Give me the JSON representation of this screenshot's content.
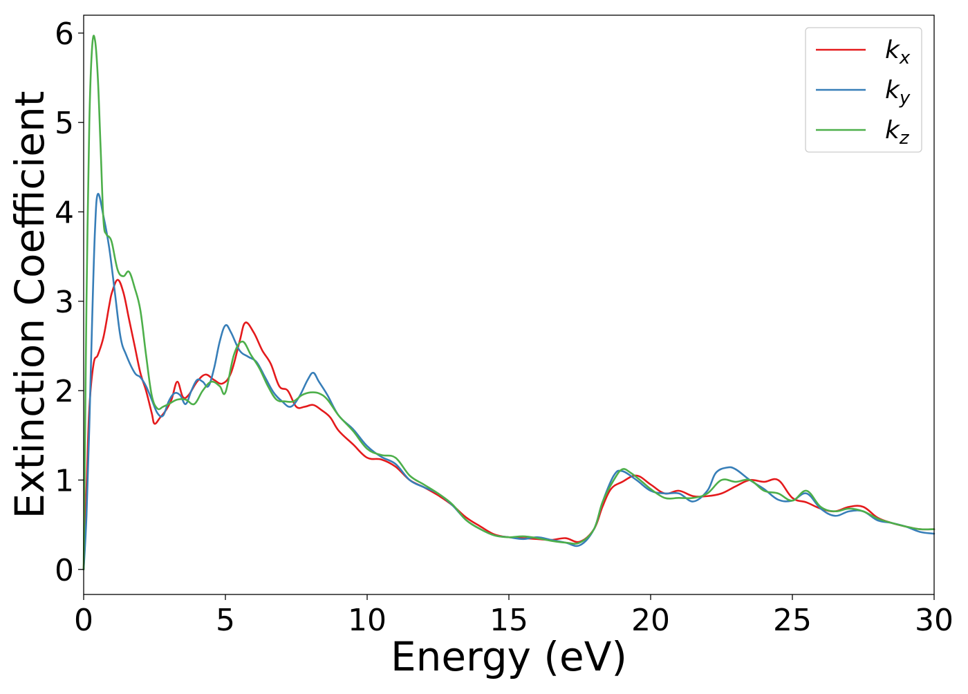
{
  "chart_data": {
    "type": "line",
    "title": "",
    "xlabel": "Energy (eV)",
    "ylabel": "Extinction Coefficient",
    "xlim": [
      0,
      30
    ],
    "ylim": [
      -0.28,
      6.2
    ],
    "xticks": [
      0,
      5,
      10,
      15,
      20,
      25,
      30
    ],
    "yticks": [
      0,
      1,
      2,
      3,
      4,
      5,
      6
    ],
    "grid": false,
    "legend_position": "top-right",
    "series": [
      {
        "name": "k_x",
        "label_main": "k",
        "label_sub": "x",
        "color": "#e41a1c",
        "x": [
          0,
          0.1,
          0.2,
          0.35,
          0.5,
          0.7,
          0.9,
          1.0,
          1.2,
          1.4,
          1.6,
          1.8,
          2.0,
          2.2,
          2.4,
          2.5,
          2.7,
          2.9,
          3.1,
          3.3,
          3.5,
          3.7,
          4.0,
          4.3,
          4.6,
          4.9,
          5.2,
          5.5,
          5.7,
          6.0,
          6.3,
          6.6,
          6.9,
          7.2,
          7.5,
          7.8,
          8.1,
          8.4,
          8.7,
          9.0,
          9.5,
          10.0,
          10.5,
          11.0,
          11.5,
          12.0,
          12.5,
          13.0,
          13.5,
          14.0,
          14.5,
          15.0,
          15.5,
          16.0,
          16.5,
          17.0,
          17.5,
          18.0,
          18.3,
          18.6,
          19.0,
          19.5,
          20.0,
          20.5,
          21.0,
          21.5,
          22.0,
          22.5,
          23.0,
          23.5,
          24.0,
          24.5,
          25.0,
          25.5,
          26.0,
          26.5,
          27.0,
          27.5,
          28.0,
          28.5,
          29.0,
          29.5,
          30.0
        ],
        "y": [
          0,
          0.9,
          1.8,
          2.3,
          2.4,
          2.6,
          2.95,
          3.1,
          3.24,
          3.1,
          2.8,
          2.5,
          2.2,
          2.0,
          1.75,
          1.63,
          1.7,
          1.78,
          1.9,
          2.1,
          1.93,
          1.95,
          2.1,
          2.18,
          2.12,
          2.08,
          2.2,
          2.55,
          2.76,
          2.65,
          2.45,
          2.3,
          2.05,
          2.0,
          1.82,
          1.82,
          1.84,
          1.78,
          1.7,
          1.55,
          1.4,
          1.25,
          1.23,
          1.15,
          1.0,
          0.92,
          0.83,
          0.72,
          0.58,
          0.48,
          0.39,
          0.36,
          0.35,
          0.34,
          0.33,
          0.35,
          0.31,
          0.45,
          0.7,
          0.9,
          0.98,
          1.05,
          0.95,
          0.85,
          0.88,
          0.82,
          0.82,
          0.85,
          0.93,
          1.0,
          0.98,
          1.0,
          0.8,
          0.75,
          0.68,
          0.65,
          0.7,
          0.7,
          0.58,
          0.52,
          0.48,
          0.45,
          0.45
        ]
      },
      {
        "name": "k_y",
        "label_main": "k",
        "label_sub": "y",
        "color": "#377eb8",
        "x": [
          0,
          0.1,
          0.2,
          0.3,
          0.4,
          0.5,
          0.7,
          0.9,
          1.1,
          1.3,
          1.5,
          1.8,
          2.0,
          2.2,
          2.4,
          2.6,
          2.8,
          3.0,
          3.2,
          3.4,
          3.6,
          3.8,
          4.0,
          4.2,
          4.4,
          4.6,
          4.8,
          5.0,
          5.2,
          5.5,
          5.8,
          6.1,
          6.4,
          6.7,
          7.0,
          7.3,
          7.6,
          7.9,
          8.1,
          8.3,
          8.6,
          9.0,
          9.5,
          10.0,
          10.5,
          11.0,
          11.5,
          12.0,
          12.5,
          13.0,
          13.5,
          14.0,
          14.5,
          15.0,
          15.5,
          16.0,
          16.5,
          17.0,
          17.5,
          18.0,
          18.3,
          18.7,
          19.0,
          19.5,
          20.0,
          20.5,
          21.0,
          21.5,
          22.0,
          22.3,
          22.7,
          23.0,
          23.5,
          24.0,
          24.5,
          25.0,
          25.5,
          26.0,
          26.5,
          27.0,
          27.5,
          28.0,
          28.5,
          29.0,
          29.5,
          30.0
        ],
        "y": [
          0,
          0.6,
          1.6,
          2.8,
          3.8,
          4.2,
          3.95,
          3.6,
          3.1,
          2.6,
          2.4,
          2.2,
          2.15,
          2.05,
          1.9,
          1.75,
          1.72,
          1.88,
          1.97,
          1.95,
          1.85,
          2.0,
          2.12,
          2.1,
          2.05,
          2.25,
          2.55,
          2.73,
          2.65,
          2.45,
          2.38,
          2.32,
          2.15,
          1.98,
          1.88,
          1.82,
          1.93,
          2.12,
          2.2,
          2.1,
          1.95,
          1.72,
          1.57,
          1.38,
          1.26,
          1.18,
          1.0,
          0.92,
          0.85,
          0.72,
          0.55,
          0.45,
          0.38,
          0.36,
          0.34,
          0.36,
          0.33,
          0.3,
          0.27,
          0.45,
          0.75,
          1.05,
          1.1,
          1.0,
          0.88,
          0.85,
          0.85,
          0.76,
          0.88,
          1.08,
          1.14,
          1.12,
          1.0,
          0.9,
          0.78,
          0.77,
          0.85,
          0.68,
          0.6,
          0.65,
          0.65,
          0.55,
          0.52,
          0.48,
          0.42,
          0.4
        ]
      },
      {
        "name": "k_z",
        "label_main": "k",
        "label_sub": "z",
        "color": "#4daf4a",
        "x": [
          0,
          0.05,
          0.1,
          0.2,
          0.3,
          0.4,
          0.5,
          0.6,
          0.7,
          0.8,
          0.9,
          1.0,
          1.2,
          1.4,
          1.6,
          1.8,
          2.0,
          2.2,
          2.4,
          2.6,
          2.8,
          3.0,
          3.3,
          3.6,
          3.9,
          4.2,
          4.5,
          4.8,
          5.0,
          5.3,
          5.6,
          5.9,
          6.2,
          6.5,
          6.8,
          7.1,
          7.4,
          7.7,
          8.0,
          8.3,
          8.6,
          9.0,
          9.5,
          10.0,
          10.5,
          11.0,
          11.5,
          12.0,
          12.5,
          13.0,
          13.5,
          14.0,
          14.5,
          15.0,
          15.5,
          16.0,
          16.5,
          17.0,
          17.5,
          18.0,
          18.3,
          18.7,
          19.0,
          19.3,
          19.7,
          20.0,
          20.5,
          21.0,
          21.5,
          22.0,
          22.5,
          23.0,
          23.5,
          24.0,
          24.5,
          25.0,
          25.5,
          26.0,
          26.5,
          27.0,
          27.5,
          28.0,
          28.5,
          29.0,
          29.5,
          30.0
        ],
        "y": [
          0,
          1.5,
          3.0,
          5.0,
          5.85,
          5.92,
          5.5,
          4.7,
          3.9,
          3.75,
          3.72,
          3.65,
          3.35,
          3.28,
          3.33,
          3.15,
          2.9,
          2.4,
          1.95,
          1.8,
          1.82,
          1.85,
          1.9,
          1.9,
          1.85,
          2.0,
          2.1,
          2.05,
          1.98,
          2.4,
          2.55,
          2.4,
          2.25,
          2.05,
          1.9,
          1.88,
          1.88,
          1.95,
          1.98,
          1.97,
          1.9,
          1.72,
          1.55,
          1.35,
          1.28,
          1.25,
          1.05,
          0.95,
          0.85,
          0.73,
          0.55,
          0.45,
          0.38,
          0.36,
          0.37,
          0.35,
          0.32,
          0.3,
          0.3,
          0.45,
          0.75,
          1.0,
          1.12,
          1.08,
          0.98,
          0.9,
          0.8,
          0.8,
          0.8,
          0.85,
          1.0,
          0.98,
          1.0,
          0.88,
          0.85,
          0.77,
          0.88,
          0.7,
          0.65,
          0.68,
          0.65,
          0.57,
          0.52,
          0.48,
          0.45,
          0.45
        ]
      }
    ]
  }
}
